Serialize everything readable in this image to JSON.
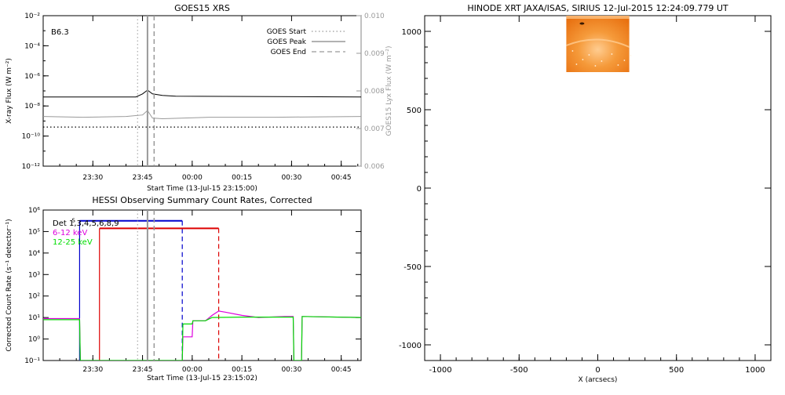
{
  "chart_data": [
    {
      "type": "line",
      "title": "GOES15 XRS",
      "annotation": "B6.3",
      "xlabel": "Start Time (13-Jul-15 23:15:00)",
      "ylabel": "X-ray Flux (W m⁻²)",
      "ylabel_right": "GOES15 Lyx Flux (W m⁻²)",
      "x_ticks": [
        {
          "t": 15,
          "label": "23:30"
        },
        {
          "t": 30,
          "label": "23:45"
        },
        {
          "t": 45,
          "label": "00:00"
        },
        {
          "t": 60,
          "label": "00:15"
        },
        {
          "t": 75,
          "label": "00:30"
        },
        {
          "t": 90,
          "label": "00:45"
        }
      ],
      "xlim_minutes_from_start": [
        0,
        96
      ],
      "y_log": true,
      "ylim_log10": [
        -12,
        -2
      ],
      "y_ticks": [
        {
          "log": -2,
          "label": "10⁻²"
        },
        {
          "log": -4,
          "label": "10⁻⁴"
        },
        {
          "log": -6,
          "label": "10⁻⁶"
        },
        {
          "log": -8,
          "label": "10⁻⁸"
        },
        {
          "log": -10,
          "label": "10⁻¹⁰"
        },
        {
          "log": -12,
          "label": "10⁻¹²"
        }
      ],
      "y_right_ticks": [
        {
          "v": 0.01,
          "label": "0.010"
        },
        {
          "v": 0.009,
          "label": "0.009"
        },
        {
          "v": 0.008,
          "label": "0.008"
        },
        {
          "v": 0.007,
          "label": "0.007"
        },
        {
          "v": 0.006,
          "label": "0.006"
        }
      ],
      "y_right_lim": [
        0.006,
        0.01
      ],
      "legend": [
        {
          "label": "GOES Start",
          "style": "dotted"
        },
        {
          "label": "GOES Peak",
          "style": "solid"
        },
        {
          "label": "GOES End",
          "style": "dashed"
        }
      ],
      "legend_position": "top-right",
      "markers_minutes": {
        "start": 28.5,
        "peak": 31.5,
        "end": 33.5
      },
      "series": [
        {
          "color": "#000000",
          "log10_flux": [
            [
              0,
              -7.4
            ],
            [
              28,
              -7.4
            ],
            [
              30,
              -7.2
            ],
            [
              31.5,
              -6.95
            ],
            [
              33,
              -7.2
            ],
            [
              36,
              -7.3
            ],
            [
              40,
              -7.35
            ],
            [
              96,
              -7.4
            ]
          ]
        },
        {
          "color": "#999999",
          "log10_flux": [
            [
              0,
              -8.7
            ],
            [
              12,
              -8.75
            ],
            [
              25,
              -8.7
            ],
            [
              30,
              -8.6
            ],
            [
              31.5,
              -8.3
            ],
            [
              33,
              -8.8
            ],
            [
              36,
              -8.85
            ],
            [
              50,
              -8.75
            ],
            [
              70,
              -8.75
            ],
            [
              96,
              -8.7
            ]
          ]
        },
        {
          "color": "#000000",
          "style": "dotted",
          "log10_flux": [
            [
              0,
              -9.4
            ],
            [
              96,
              -9.4
            ]
          ]
        }
      ]
    },
    {
      "type": "line",
      "title": "HESSI Observing Summary Count Rates, Corrected",
      "xlabel": "Start Time (13-Jul-15 23:15:02)",
      "ylabel": "Corrected Count Rate (s⁻¹ detector⁻¹)",
      "y_log": true,
      "ylim_log10": [
        -1,
        6
      ],
      "y_ticks": [
        {
          "log": 6,
          "label": "10⁶"
        },
        {
          "log": 5,
          "label": "10⁵"
        },
        {
          "log": 4,
          "label": "10⁴"
        },
        {
          "log": 3,
          "label": "10³"
        },
        {
          "log": 2,
          "label": "10²"
        },
        {
          "log": 1,
          "label": "10¹"
        },
        {
          "log": 0,
          "label": "10⁰"
        },
        {
          "log": -1,
          "label": "10⁻¹"
        }
      ],
      "x_ticks": [
        {
          "t": 15,
          "label": "23:30"
        },
        {
          "t": 30,
          "label": "23:45"
        },
        {
          "t": 45,
          "label": "00:00"
        },
        {
          "t": 60,
          "label": "00:15"
        },
        {
          "t": 75,
          "label": "00:30"
        },
        {
          "t": 90,
          "label": "00:45"
        }
      ],
      "xlim_minutes_from_start": [
        0,
        96
      ],
      "legend": [
        {
          "label": "Det 1,3,4,5,6,8,9",
          "color": "#000000"
        },
        {
          "label": "6-12 keV",
          "color": "#dd00dd"
        },
        {
          "label": "12-25 keV",
          "color": "#00dd00"
        }
      ],
      "legend_position": "top-left",
      "bar_label": "S",
      "spans_minutes": [
        {
          "color": "#0000cc",
          "start": 11,
          "end": 42,
          "log10_level": 5.5
        },
        {
          "color": "#dd0000",
          "start": 17,
          "end": 53,
          "log10_level": 5.15
        }
      ],
      "markers_minutes": {
        "start": 28.5,
        "peak": 31.5,
        "end": 33.5
      },
      "series": [
        {
          "name": "6-12 keV",
          "color": "#dd00dd",
          "log10_rate": [
            [
              0,
              0.95
            ],
            [
              11,
              0.95
            ],
            [
              11.2,
              -1
            ],
            [
              42,
              -1
            ],
            [
              42.2,
              0.1
            ],
            [
              45,
              0.1
            ],
            [
              45.2,
              0.85
            ],
            [
              49,
              0.85
            ],
            [
              51,
              1.1
            ],
            [
              53,
              1.3
            ],
            [
              55,
              1.25
            ],
            [
              60,
              1.1
            ],
            [
              65,
              1.0
            ],
            [
              73,
              1.05
            ],
            [
              75.5,
              1.05
            ],
            [
              75.7,
              -1
            ],
            [
              78,
              -1
            ],
            [
              78.2,
              1.05
            ],
            [
              96,
              1.0
            ]
          ]
        },
        {
          "name": "12-25 keV",
          "color": "#00dd00",
          "log10_rate": [
            [
              0,
              0.9
            ],
            [
              11,
              0.9
            ],
            [
              11.2,
              -1
            ],
            [
              42,
              -1
            ],
            [
              42.2,
              0.7
            ],
            [
              45,
              0.7
            ],
            [
              45.2,
              0.85
            ],
            [
              49,
              0.85
            ],
            [
              51,
              1.0
            ],
            [
              60,
              1.02
            ],
            [
              73,
              1.02
            ],
            [
              75.5,
              1.02
            ],
            [
              75.7,
              -1
            ],
            [
              78,
              -1
            ],
            [
              78.2,
              1.05
            ],
            [
              96,
              1.0
            ]
          ]
        }
      ]
    },
    {
      "type": "image",
      "title": "HINODE XRT JAXA/ISAS, SIRIUS 12-Jul-2015 12:24:09.779 UT",
      "xlabel": "X (arcsecs)",
      "ylabel": "",
      "xlim": [
        -1100,
        1100
      ],
      "ylim": [
        -1100,
        1100
      ],
      "x_ticks": [
        -1000,
        -500,
        0,
        500,
        1000
      ],
      "y_ticks": [
        -1000,
        -500,
        0,
        500,
        1000
      ],
      "image_extent": {
        "x": [
          -200,
          200
        ],
        "y": [
          740,
          1100
        ]
      },
      "colors": {
        "image_base": "#f07a10",
        "image_light": "#ffcc90",
        "image_dark": "#c85a00"
      }
    }
  ]
}
